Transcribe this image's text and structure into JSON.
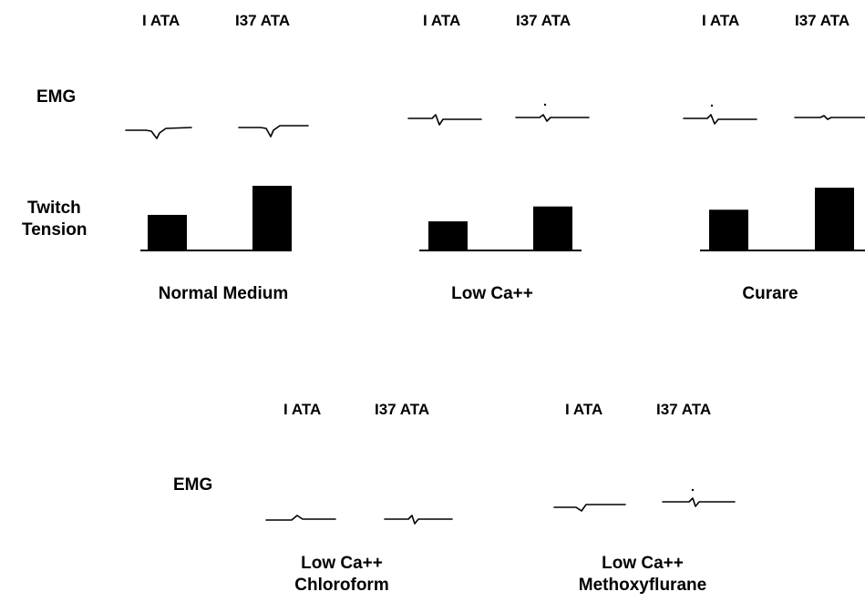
{
  "row_labels": {
    "emg_top": "EMG",
    "twitch_line1": "Twitch",
    "twitch_line2": "Tension",
    "emg_bottom": "EMG"
  },
  "panels": [
    {
      "key": "normal",
      "h1": "I ATA",
      "h2": "I37 ATA",
      "condition": [
        "Normal Medium"
      ],
      "twitch_values": [
        0.55,
        1.0
      ]
    },
    {
      "key": "lowca",
      "h1": "I ATA",
      "h2": "I37 ATA",
      "condition": [
        "Low Ca++"
      ],
      "twitch_values": [
        0.45,
        0.68
      ]
    },
    {
      "key": "curare",
      "h1": "I ATA",
      "h2": "I37 ATA",
      "condition": [
        "Curare"
      ],
      "twitch_values": [
        0.63,
        0.97
      ]
    },
    {
      "key": "chloroform",
      "h1": "I ATA",
      "h2": "I37 ATA",
      "condition": [
        "Low Ca++",
        "Chloroform"
      ]
    },
    {
      "key": "methoxy",
      "h1": "I ATA",
      "h2": "I37 ATA",
      "condition": [
        "Low Ca++",
        "Methoxyflurane"
      ]
    }
  ]
}
